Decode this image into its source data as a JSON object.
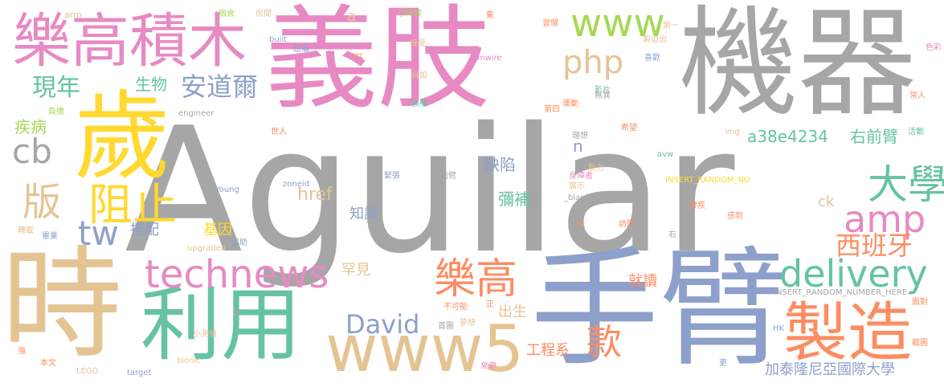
{
  "palette": {
    "gray": "#a6a6a6",
    "pink": "#e78ac3",
    "yellow": "#ffd92f",
    "tan": "#e5c494",
    "green": "#66c2a5",
    "blue": "#8da0cb",
    "orange": "#fc8d62",
    "lime": "#a6d854"
  },
  "words": [
    {
      "text": "Aguilar",
      "color": "gray"
    },
    {
      "text": "義肢",
      "color": "pink"
    },
    {
      "text": "機器",
      "color": "gray"
    },
    {
      "text": "手臂",
      "color": "blue"
    },
    {
      "text": "時",
      "color": "tan"
    },
    {
      "text": "歲",
      "color": "yellow"
    },
    {
      "text": "利用",
      "color": "green"
    },
    {
      "text": "製造",
      "color": "orange"
    },
    {
      "text": "樂高積木",
      "color": "pink"
    },
    {
      "text": "www5",
      "color": "tan"
    },
    {
      "text": "technews",
      "color": "pink"
    },
    {
      "text": "delivery",
      "color": "green"
    },
    {
      "text": "樂高",
      "color": "orange"
    },
    {
      "text": "amp",
      "color": "pink"
    },
    {
      "text": "大學",
      "color": "green"
    },
    {
      "text": "www",
      "color": "lime"
    },
    {
      "text": "php",
      "color": "tan"
    },
    {
      "text": "cb",
      "color": "gray"
    },
    {
      "text": "版",
      "color": "tan"
    },
    {
      "text": "阻止",
      "color": "yellow"
    },
    {
      "text": "tw",
      "color": "blue"
    },
    {
      "text": "David",
      "color": "blue"
    },
    {
      "text": "款",
      "color": "orange"
    },
    {
      "text": "安道爾",
      "color": "blue"
    },
    {
      "text": "現年",
      "color": "green"
    },
    {
      "text": "西班牙",
      "color": "orange"
    },
    {
      "text": "a38e4234",
      "color": "green"
    },
    {
      "text": "右前臂",
      "color": "green"
    },
    {
      "text": "疾病",
      "color": "lime"
    },
    {
      "text": "生物",
      "color": "green"
    },
    {
      "text": "缺陷",
      "color": "blue"
    },
    {
      "text": "彌補",
      "color": "green"
    },
    {
      "text": "知識",
      "color": "blue"
    },
    {
      "text": "基因",
      "color": "yellow"
    },
    {
      "text": "搭配",
      "color": "blue"
    },
    {
      "text": "href",
      "color": "tan"
    },
    {
      "text": "罕見",
      "color": "tan"
    },
    {
      "text": "出生",
      "color": "tan"
    },
    {
      "text": "就讀",
      "color": "orange"
    },
    {
      "text": "工程系",
      "color": "orange"
    },
    {
      "text": "加泰隆尼亞國際大學",
      "color": "blue"
    },
    {
      "text": "n",
      "color": "blue"
    },
    {
      "text": "ck",
      "color": "tan"
    },
    {
      "text": "a",
      "color": "tan"
    },
    {
      "text": "arm",
      "color": "tan"
    },
    {
      "text": "宿舍",
      "color": "lime"
    },
    {
      "text": "房間",
      "color": "tan"
    },
    {
      "text": "built",
      "color": "blue"
    },
    {
      "text": "班壩",
      "color": "blue"
    },
    {
      "text": "小時候",
      "color": "lime"
    },
    {
      "text": "集",
      "color": "orange"
    },
    {
      "text": "習慣",
      "color": "orange"
    },
    {
      "text": "第一",
      "color": "tan"
    },
    {
      "text": "製造出",
      "color": "tan"
    },
    {
      "text": "喜歡",
      "color": "blue"
    },
    {
      "text": "色彩",
      "color": "pink"
    },
    {
      "text": "接受",
      "color": "tan"
    },
    {
      "text": "src",
      "color": "orange"
    },
    {
      "text": "Unwire",
      "color": "pink"
    },
    {
      "text": "自如",
      "color": "tan"
    },
    {
      "text": "換權",
      "color": "green"
    },
    {
      "text": "影片",
      "color": "green"
    },
    {
      "text": "運動",
      "color": "orange"
    },
    {
      "text": "無異",
      "color": "gray"
    },
    {
      "text": "常人",
      "color": "orange"
    },
    {
      "text": "第四",
      "color": "orange"
    },
    {
      "text": "engineer",
      "color": "gray"
    },
    {
      "text": "負擔",
      "color": "lime"
    },
    {
      "text": "世人",
      "color": "orange"
    },
    {
      "text": "理想",
      "color": "gray"
    },
    {
      "text": "希望",
      "color": "orange"
    },
    {
      "text": "img",
      "color": "tan"
    },
    {
      "text": "活動",
      "color": "green"
    },
    {
      "text": "能力",
      "color": "tan"
    },
    {
      "text": "avw",
      "color": "green"
    },
    {
      "text": "Young",
      "color": "blue"
    },
    {
      "text": "zoneid",
      "color": "blue"
    },
    {
      "text": "緊張",
      "color": "blue"
    },
    {
      "text": "前臂",
      "color": "gray"
    },
    {
      "text": "身障者",
      "color": "pink"
    },
    {
      "text": "展示",
      "color": "tan"
    },
    {
      "text": "INSERT_RANDOM_NU",
      "color": "yellow"
    },
    {
      "text": "_blank'",
      "color": "gray"
    },
    {
      "text": "發疾",
      "color": "orange"
    },
    {
      "text": "感到",
      "color": "orange"
    },
    {
      "text": "轉載",
      "color": "tan"
    },
    {
      "text": "畢業",
      "color": "blue"
    },
    {
      "text": "upgraded",
      "color": "tan"
    },
    {
      "text": "協助",
      "color": "blue"
    },
    {
      "text": "未",
      "color": "orange"
    },
    {
      "text": "訪問",
      "color": "orange"
    },
    {
      "text": "右",
      "color": "gray"
    },
    {
      "text": "INSERT_RANDOM_NUMBER_HERE",
      "color": "gray"
    },
    {
      "text": "面對",
      "color": "orange"
    },
    {
      "text": "不可能",
      "color": "orange"
    },
    {
      "text": "正",
      "color": "orange"
    },
    {
      "text": "放",
      "color": "gray"
    },
    {
      "text": "小測繪",
      "color": "tan"
    },
    {
      "text": "首圖",
      "color": "gray"
    },
    {
      "text": "夢想",
      "color": "tan"
    },
    {
      "text": "HK",
      "color": "blue"
    },
    {
      "text": "截圖",
      "color": "orange"
    },
    {
      "text": "強",
      "color": "orange"
    },
    {
      "text": "本文",
      "color": "orange"
    },
    {
      "text": "bionic",
      "color": "tan"
    },
    {
      "text": "LEGO",
      "color": "tan"
    },
    {
      "text": "target",
      "color": "blue"
    },
    {
      "text": "來源",
      "color": "pink"
    },
    {
      "text": "更",
      "color": "blue"
    }
  ]
}
